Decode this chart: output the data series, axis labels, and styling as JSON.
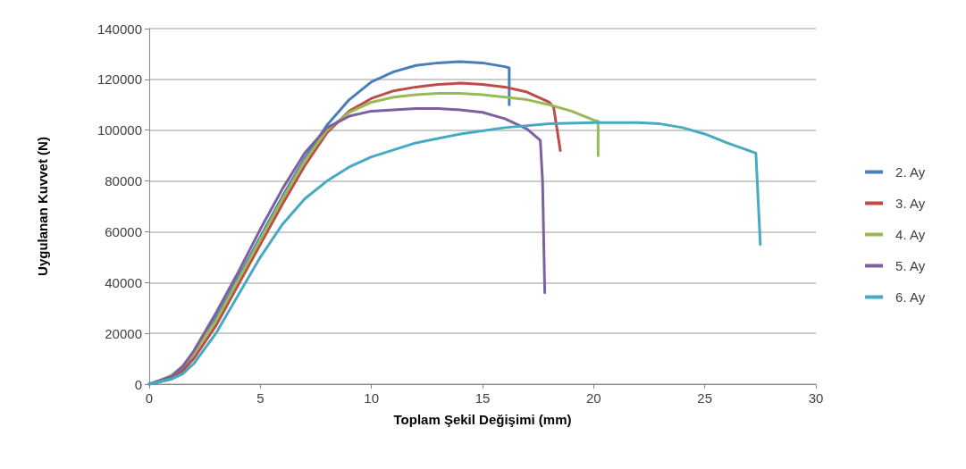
{
  "chart_data": {
    "type": "line",
    "xlabel": "Toplam Şekil Değişimi (mm)",
    "ylabel": "Uygulanan Kuvvet (N)",
    "xlim": [
      0,
      30
    ],
    "xticks": [
      0,
      5,
      10,
      15,
      20,
      25,
      30
    ],
    "ylim": [
      0,
      140000
    ],
    "yticks": [
      0,
      20000,
      40000,
      60000,
      80000,
      100000,
      120000,
      140000
    ],
    "grid": "y",
    "legend": "right",
    "marker": "none",
    "line_style": "solid",
    "series": [
      {
        "name": "2. Ay",
        "color": "#4a7ebb",
        "x": [
          0,
          0.5,
          1,
          1.5,
          2,
          3,
          4,
          5,
          6,
          7,
          8,
          9,
          10,
          11,
          12,
          13,
          14,
          15,
          16,
          16.2,
          16.2
        ],
        "values": [
          0,
          1000,
          2500,
          6000,
          12000,
          26000,
          42000,
          58000,
          74000,
          89000,
          102000,
          112000,
          119000,
          123000,
          125500,
          126500,
          127000,
          126500,
          125000,
          124500,
          110000
        ]
      },
      {
        "name": "3. Ay",
        "color": "#be4b48",
        "x": [
          0,
          1,
          1.5,
          2,
          3,
          4,
          5,
          6,
          7,
          8,
          9,
          10,
          11,
          12,
          13,
          14,
          15,
          16,
          17,
          18,
          18.2,
          18.5
        ],
        "values": [
          0,
          2000,
          5000,
          10000,
          23000,
          39000,
          55000,
          71000,
          86000,
          99000,
          107500,
          112500,
          115500,
          117000,
          118000,
          118500,
          118000,
          117000,
          115000,
          111000,
          109000,
          92000
        ]
      },
      {
        "name": "4. Ay",
        "color": "#98b954",
        "x": [
          0,
          0.5,
          1,
          1.5,
          2,
          3,
          4,
          5,
          6,
          7,
          8,
          9,
          10,
          11,
          12,
          13,
          14,
          15,
          16,
          17,
          18,
          19,
          20,
          20.2,
          20.2
        ],
        "values": [
          0,
          1500,
          3500,
          7000,
          12000,
          25000,
          41000,
          57000,
          73000,
          88000,
          100000,
          107000,
          111000,
          113000,
          114000,
          114500,
          114500,
          114000,
          113000,
          112000,
          110000,
          107500,
          104000,
          103500,
          90000
        ]
      },
      {
        "name": "5. Ay",
        "color": "#7d60a0",
        "x": [
          0,
          1,
          1.5,
          2,
          3,
          4,
          5,
          6,
          7,
          8,
          9,
          10,
          11,
          12,
          13,
          14,
          15,
          16,
          17,
          17.6,
          17.7,
          17.8
        ],
        "values": [
          0,
          3000,
          7000,
          13000,
          28000,
          44000,
          61000,
          77000,
          91000,
          101000,
          105500,
          107500,
          108000,
          108500,
          108500,
          108000,
          107000,
          104500,
          100500,
          96000,
          80000,
          36000
        ]
      },
      {
        "name": "6. Ay",
        "color": "#46aac5",
        "x": [
          0,
          1,
          1.5,
          2,
          3,
          4,
          5,
          6,
          7,
          8,
          9,
          10,
          12,
          14,
          16,
          18,
          20,
          22,
          23,
          24,
          25,
          26,
          27.3,
          27.5
        ],
        "values": [
          0,
          2000,
          4000,
          8000,
          20000,
          35000,
          50000,
          63000,
          73000,
          80000,
          85500,
          89500,
          95000,
          98500,
          101000,
          102500,
          103000,
          103000,
          102500,
          101000,
          98500,
          95000,
          91000,
          55000
        ]
      }
    ]
  }
}
